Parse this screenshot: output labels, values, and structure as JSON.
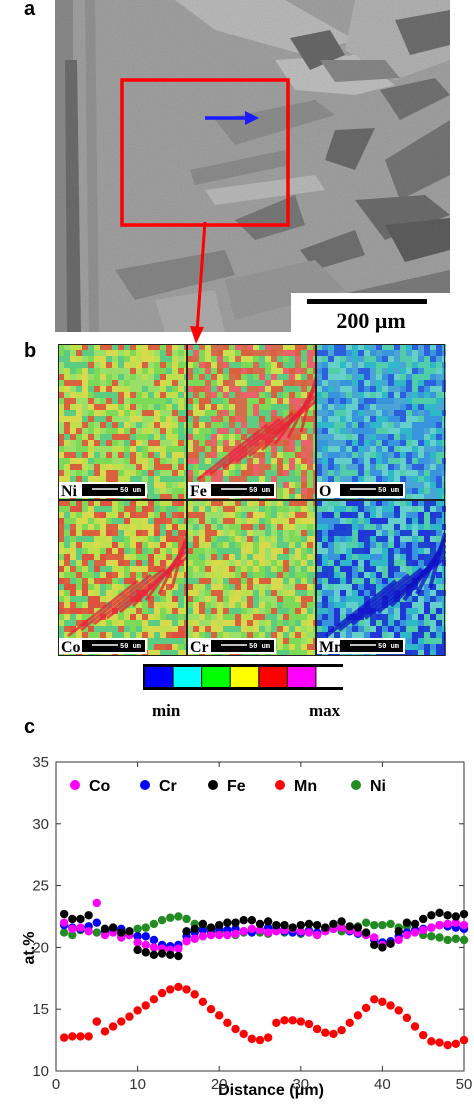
{
  "panels": {
    "a": "a",
    "b": "b",
    "c": "c"
  },
  "sem": {
    "scale_bar_label": "200 μm",
    "colors": {
      "bg": "#9e9e9e",
      "dark": "#6f6f6f",
      "light": "#b8b8b8",
      "box": "#ff0000",
      "arrow": "#1a1aff"
    }
  },
  "maps": {
    "elements": [
      "Ni",
      "Fe",
      "O",
      "Co",
      "Cr",
      "Mn"
    ],
    "scale_bar_label": "50 um"
  },
  "colorbar": {
    "colors": [
      "#0000ff",
      "#00ffff",
      "#00ff00",
      "#ffff00",
      "#ff0000",
      "#ff00ff",
      "#ffffff"
    ],
    "min_label": "min",
    "max_label": "max"
  },
  "chart_data": {
    "type": "scatter",
    "xlabel": "Distance (μm)",
    "ylabel": "at.%",
    "xlim": [
      0,
      50
    ],
    "ylim": [
      10,
      35
    ],
    "xticks": [
      0,
      10,
      20,
      30,
      40,
      50
    ],
    "yticks": [
      10,
      15,
      20,
      25,
      30,
      35
    ],
    "grid": false,
    "legend_position": "top",
    "x": [
      1,
      2,
      3,
      4,
      5,
      6,
      7,
      8,
      9,
      10,
      11,
      12,
      13,
      14,
      15,
      16,
      17,
      18,
      19,
      20,
      21,
      22,
      23,
      24,
      25,
      26,
      27,
      28,
      29,
      30,
      31,
      32,
      33,
      34,
      35,
      36,
      37,
      38,
      39,
      40,
      41,
      42,
      43,
      44,
      45,
      46,
      47,
      48,
      49,
      50
    ],
    "series": [
      {
        "name": "Co",
        "color": "#ff00ff",
        "values": [
          22.0,
          21.5,
          21.6,
          21.3,
          23.6,
          21.0,
          21.2,
          20.8,
          21.0,
          20.4,
          20.2,
          20.0,
          19.9,
          19.8,
          19.9,
          20.5,
          20.7,
          20.9,
          21.0,
          21.0,
          21.0,
          21.1,
          21.3,
          21.5,
          21.4,
          21.2,
          21.3,
          21.4,
          21.5,
          21.3,
          21.2,
          21.0,
          21.3,
          21.5,
          21.6,
          21.4,
          21.2,
          21.0,
          20.8,
          20.2,
          20.3,
          20.6,
          21.0,
          21.2,
          21.4,
          21.6,
          21.8,
          21.9,
          22.0,
          21.8
        ]
      },
      {
        "name": "Cr",
        "color": "#0000ff",
        "values": [
          21.8,
          21.6,
          21.5,
          21.7,
          22.0,
          21.3,
          21.4,
          21.5,
          21.0,
          20.9,
          20.9,
          20.6,
          20.2,
          20.1,
          20.2,
          20.9,
          21.2,
          21.4,
          21.2,
          21.5,
          21.4,
          21.5,
          21.3,
          21.2,
          21.4,
          21.6,
          21.5,
          21.3,
          21.2,
          21.2,
          21.3,
          21.2,
          21.4,
          21.5,
          21.6,
          21.3,
          21.1,
          21.0,
          20.6,
          20.4,
          20.5,
          20.9,
          21.2,
          21.4,
          21.5,
          21.6,
          21.8,
          21.7,
          21.6,
          21.5
        ]
      },
      {
        "name": "Fe",
        "color": "#000000",
        "values": [
          22.7,
          22.3,
          22.3,
          22.6,
          14.0,
          21.5,
          21.6,
          21.2,
          21.3,
          19.8,
          19.6,
          19.4,
          19.5,
          19.4,
          19.3,
          21.3,
          21.5,
          21.9,
          21.6,
          21.8,
          22.0,
          22.0,
          22.2,
          22.2,
          21.9,
          22.1,
          21.8,
          21.8,
          21.6,
          21.8,
          21.9,
          21.8,
          21.6,
          21.9,
          22.1,
          21.7,
          21.6,
          21.2,
          20.2,
          20.0,
          20.3,
          21.3,
          22.0,
          21.9,
          22.3,
          22.6,
          22.8,
          22.6,
          22.5,
          22.7
        ]
      },
      {
        "name": "Mn",
        "color": "#ff0000",
        "values": [
          12.7,
          12.8,
          12.8,
          12.8,
          14.0,
          13.2,
          13.6,
          14.0,
          14.4,
          14.9,
          15.3,
          15.8,
          16.3,
          16.6,
          16.8,
          16.6,
          16.2,
          15.6,
          15.0,
          14.5,
          13.9,
          13.4,
          13.0,
          12.6,
          12.5,
          12.7,
          13.9,
          14.1,
          14.1,
          14.0,
          13.8,
          13.4,
          13.1,
          13.0,
          13.3,
          13.9,
          14.5,
          15.1,
          15.8,
          15.6,
          15.3,
          14.9,
          14.3,
          13.6,
          12.9,
          12.4,
          12.3,
          12.1,
          12.2,
          12.5
        ]
      },
      {
        "name": "Ni",
        "color": "#228b22",
        "values": [
          21.2,
          21.0,
          21.4,
          21.7,
          21.2,
          21.3,
          21.5,
          21.0,
          21.3,
          21.5,
          21.6,
          21.9,
          22.2,
          22.4,
          22.5,
          22.3,
          21.9,
          21.6,
          21.5,
          21.3,
          21.2,
          21.0,
          21.2,
          21.4,
          21.2,
          21.1,
          21.4,
          21.2,
          21.6,
          21.1,
          21.4,
          21.0,
          21.5,
          21.8,
          21.3,
          21.6,
          21.7,
          22.0,
          21.8,
          21.8,
          21.9,
          21.6,
          21.7,
          21.3,
          21.0,
          20.9,
          20.8,
          20.6,
          20.7,
          20.6
        ]
      }
    ]
  }
}
